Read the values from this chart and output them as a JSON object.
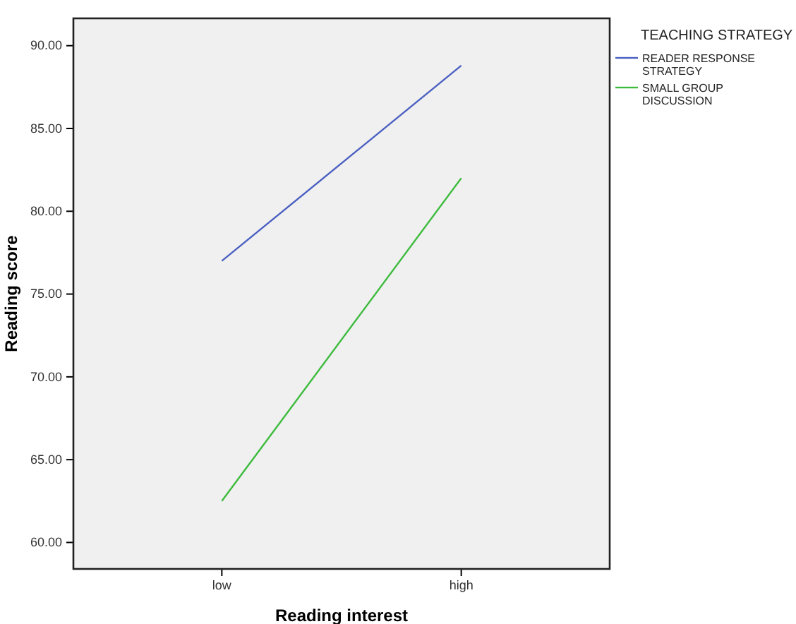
{
  "chart_data": {
    "type": "line",
    "xlabel": "Reading interest",
    "ylabel": "Reading score",
    "legend_title": "TEACHING STRATEGY",
    "categories": [
      "low",
      "high"
    ],
    "series": [
      {
        "name": "READER RESPONSE STRATEGY",
        "color": "#4a5fc1",
        "values": [
          77.0,
          88.8
        ]
      },
      {
        "name": "SMALL GROUP DISCUSSION",
        "color": "#3dbb3d",
        "values": [
          62.5,
          82.0
        ]
      }
    ],
    "ylim": [
      58.4,
      91.65
    ],
    "yticks": [
      {
        "value": 60,
        "label": "60.00"
      },
      {
        "value": 65,
        "label": "65.00"
      },
      {
        "value": 70,
        "label": "70.00"
      },
      {
        "value": 75,
        "label": "75.00"
      },
      {
        "value": 80,
        "label": "80.00"
      },
      {
        "value": 85,
        "label": "85.00"
      },
      {
        "value": 90,
        "label": "90.00"
      }
    ],
    "grid": false,
    "legend": "right",
    "marker": "none",
    "line_style": "solid"
  }
}
